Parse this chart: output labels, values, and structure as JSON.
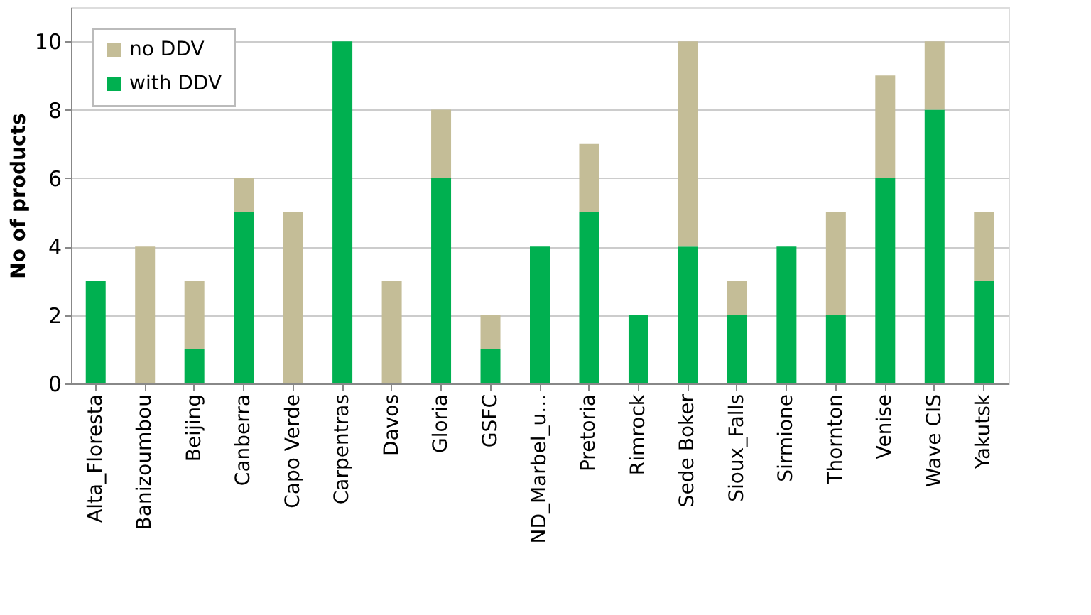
{
  "chart_data": {
    "type": "bar",
    "stacked": true,
    "ylabel": "No of products",
    "categories": [
      "Alta_Floresta",
      "Banizoumbou",
      "Beijing",
      "Canberra",
      "Capo Verde",
      "Carpentras",
      "Davos",
      "Gloria",
      "GSFC",
      "ND_Marbel_u...",
      "Pretoria",
      "Rimrock",
      "Sede Boker",
      "Sioux_Falls",
      "Sirmione",
      "Thornton",
      "Venise",
      "Wave CIS",
      "Yakutsk"
    ],
    "series": [
      {
        "name": "with DDV",
        "color": "#00b050",
        "values": [
          3,
          0,
          1,
          5,
          0,
          10,
          0,
          6,
          1,
          4,
          5,
          2,
          4,
          2,
          4,
          2,
          6,
          8,
          3
        ]
      },
      {
        "name": "no DDV",
        "color": "#c4bd97",
        "values": [
          0,
          4,
          2,
          1,
          5,
          0,
          3,
          2,
          1,
          0,
          2,
          0,
          6,
          1,
          0,
          3,
          3,
          2,
          2
        ]
      }
    ],
    "ylim": [
      0,
      11
    ],
    "yticks": [
      0,
      2,
      4,
      6,
      8,
      10
    ],
    "grid": "y",
    "legend": "top left"
  }
}
